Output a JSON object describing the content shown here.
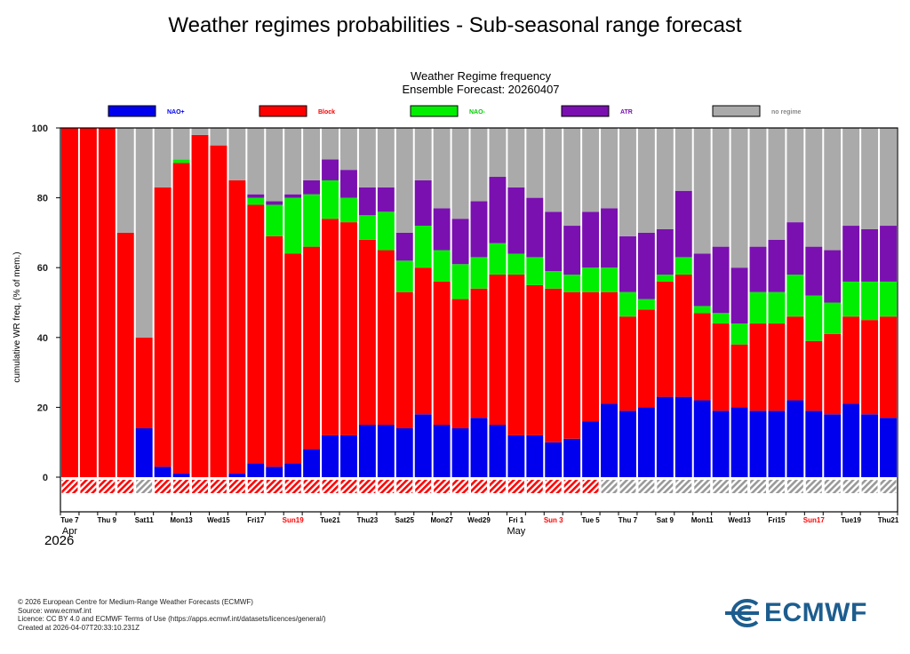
{
  "page": {
    "title": "Weather regimes probabilities - Sub-seasonal range forecast",
    "footer": [
      "© 2026 European Centre for Medium-Range Weather Forecasts (ECMWF)",
      "Source: www.ecmwf.int",
      "Licence: CC BY 4.0 and ECMWF Terms of Use (https://apps.ecmwf.int/datasets/licences/general/)",
      "Created at 2026-04-07T20:33:10.231Z"
    ],
    "logo_text": "ECMWF",
    "colors": {
      "nao_plus": "#0000ee",
      "block": "#ff0000",
      "nao_minus": "#00ee00",
      "atr": "#7a10b0",
      "no_regime": "#aaaaaa"
    }
  },
  "chart_data": {
    "type": "bar",
    "stacked": true,
    "title": "Weather Regime frequency",
    "subtitle": "Ensemble Forecast: 20260407",
    "xlabel": "",
    "ylabel": "cumulative WR freq. (% of mem.)",
    "ylim": [
      0,
      100
    ],
    "yticks": [
      0,
      20,
      40,
      60,
      80,
      100
    ],
    "legend": [
      {
        "name": "NAO+",
        "color": "#0000ee",
        "label_color": "#0000ee"
      },
      {
        "name": "Block",
        "color": "#ff0000",
        "label_color": "#ff0000"
      },
      {
        "name": "NAO-",
        "color": "#00ee00",
        "label_color": "#00cc00"
      },
      {
        "name": "ATR",
        "color": "#7a10b0",
        "label_color": "#7a10b0"
      },
      {
        "name": "no regime",
        "color": "#aaaaaa",
        "label_color": "#888888"
      }
    ],
    "x_ticks": [
      {
        "index": 0,
        "label": "Tue 7",
        "red": false
      },
      {
        "index": 2,
        "label": "Thu 9",
        "red": false
      },
      {
        "index": 4,
        "label": "Sat11",
        "red": false
      },
      {
        "index": 6,
        "label": "Mon13",
        "red": false
      },
      {
        "index": 8,
        "label": "Wed15",
        "red": false
      },
      {
        "index": 10,
        "label": "Fri17",
        "red": false
      },
      {
        "index": 12,
        "label": "Sun19",
        "red": true
      },
      {
        "index": 14,
        "label": "Tue21",
        "red": false
      },
      {
        "index": 16,
        "label": "Thu23",
        "red": false
      },
      {
        "index": 18,
        "label": "Sat25",
        "red": false
      },
      {
        "index": 20,
        "label": "Mon27",
        "red": false
      },
      {
        "index": 22,
        "label": "Wed29",
        "red": false
      },
      {
        "index": 24,
        "label": "Fri 1",
        "red": false
      },
      {
        "index": 26,
        "label": "Sun 3",
        "red": true
      },
      {
        "index": 28,
        "label": "Tue 5",
        "red": false
      },
      {
        "index": 30,
        "label": "Thu 7",
        "red": false
      },
      {
        "index": 32,
        "label": "Sat 9",
        "red": false
      },
      {
        "index": 34,
        "label": "Mon11",
        "red": false
      },
      {
        "index": 36,
        "label": "Wed13",
        "red": false
      },
      {
        "index": 38,
        "label": "Fri15",
        "red": false
      },
      {
        "index": 40,
        "label": "Sun17",
        "red": true
      },
      {
        "index": 42,
        "label": "Tue19",
        "red": false
      },
      {
        "index": 44,
        "label": "Thu21",
        "red": false
      }
    ],
    "month_labels": [
      {
        "index": 0,
        "label": "Apr"
      },
      {
        "index": 24,
        "label": "May"
      }
    ],
    "year_label": "2026",
    "days": 45,
    "series": [
      {
        "name": "NAO+",
        "values": [
          0,
          0,
          0,
          0,
          14,
          3,
          1,
          0,
          0,
          1,
          4,
          3,
          4,
          8,
          12,
          12,
          15,
          15,
          14,
          18,
          15,
          14,
          17,
          15,
          12,
          12,
          10,
          11,
          16,
          21,
          19,
          20,
          23,
          23,
          22,
          19,
          20,
          19,
          19,
          22,
          19,
          18,
          21,
          18,
          17
        ]
      },
      {
        "name": "Block",
        "values": [
          100,
          100,
          100,
          70,
          26,
          80,
          89,
          98,
          95,
          84,
          74,
          66,
          60,
          58,
          62,
          61,
          53,
          50,
          39,
          42,
          41,
          37,
          37,
          43,
          46,
          43,
          44,
          42,
          37,
          32,
          27,
          28,
          33,
          35,
          25,
          25,
          18,
          25,
          25,
          24,
          20,
          23,
          25,
          27,
          29
        ]
      },
      {
        "name": "NAO-",
        "values": [
          0,
          0,
          0,
          0,
          0,
          0,
          1,
          0,
          0,
          0,
          2,
          9,
          16,
          15,
          11,
          7,
          7,
          11,
          9,
          12,
          9,
          10,
          9,
          9,
          6,
          8,
          5,
          5,
          7,
          7,
          7,
          3,
          2,
          5,
          2,
          3,
          6,
          9,
          9,
          12,
          13,
          9,
          10,
          11,
          10
        ]
      },
      {
        "name": "ATR",
        "values": [
          0,
          0,
          0,
          0,
          0,
          0,
          0,
          0,
          0,
          0,
          1,
          1,
          1,
          4,
          6,
          8,
          8,
          7,
          8,
          13,
          12,
          13,
          16,
          19,
          19,
          17,
          17,
          14,
          16,
          17,
          16,
          19,
          13,
          19,
          15,
          19,
          16,
          13,
          15,
          15,
          14,
          15,
          16,
          15,
          16
        ]
      },
      {
        "name": "no regime",
        "values": [
          0,
          0,
          0,
          30,
          60,
          17,
          9,
          2,
          5,
          15,
          19,
          21,
          19,
          15,
          9,
          12,
          17,
          17,
          30,
          15,
          23,
          26,
          21,
          14,
          17,
          20,
          24,
          28,
          24,
          23,
          31,
          30,
          29,
          18,
          36,
          34,
          40,
          34,
          32,
          27,
          34,
          35,
          28,
          29,
          28
        ]
      }
    ],
    "bottom_flag_type": [
      "red",
      "red",
      "red",
      "red",
      "grey",
      "red",
      "red",
      "red",
      "red",
      "red",
      "red",
      "red",
      "red",
      "red",
      "red",
      "red",
      "red",
      "red",
      "red",
      "red",
      "red",
      "red",
      "red",
      "red",
      "red",
      "red",
      "red",
      "red",
      "red",
      "grey",
      "grey",
      "grey",
      "grey",
      "grey",
      "grey",
      "grey",
      "grey",
      "grey",
      "grey",
      "grey",
      "grey",
      "grey",
      "grey",
      "grey",
      "grey"
    ]
  }
}
